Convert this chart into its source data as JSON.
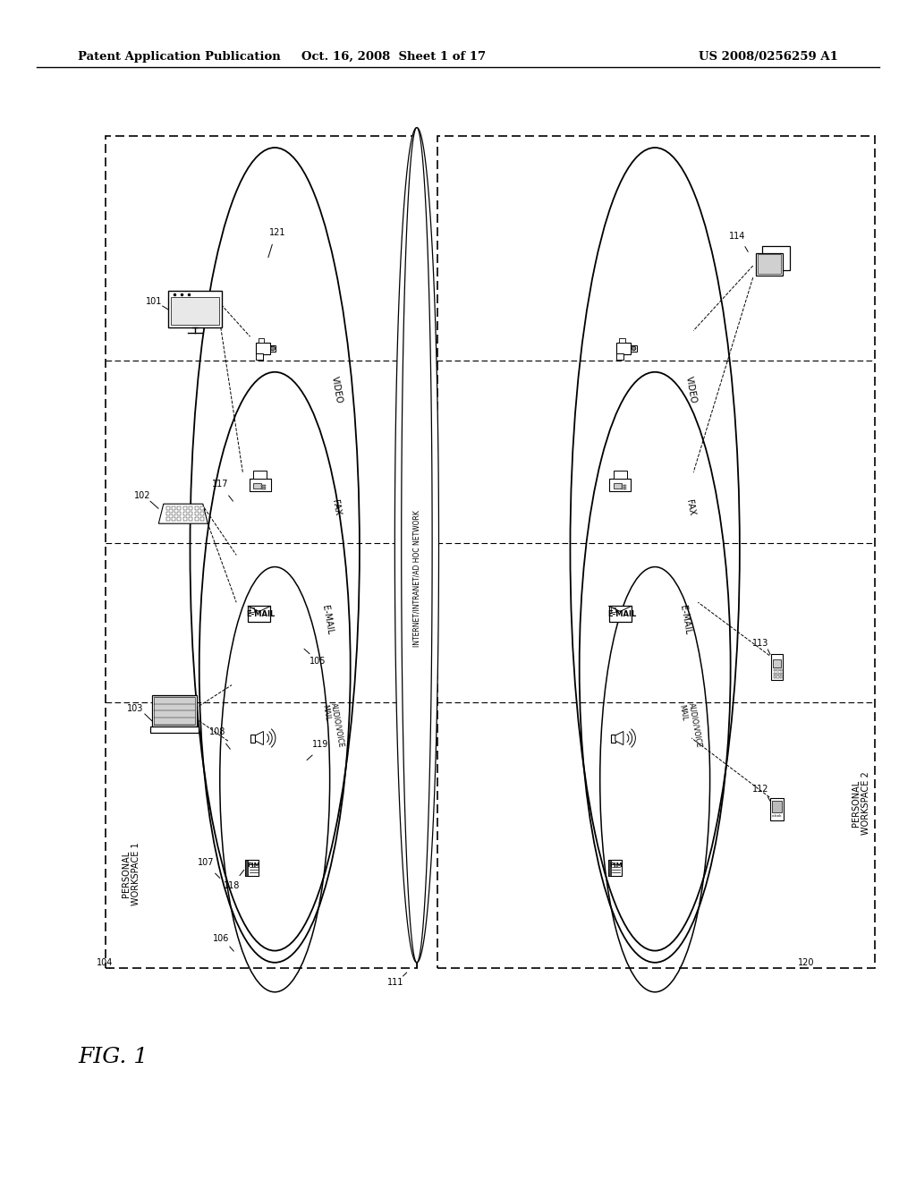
{
  "background_color": "#ffffff",
  "header_left": "Patent Application Publication",
  "header_mid": "Oct. 16, 2008  Sheet 1 of 17",
  "header_right": "US 2008/0256259 A1",
  "fig_label": "FIG. 1",
  "network_label": "INTERNET/INTRANET/AD HOC NETWORK",
  "ws1_label": "PERSONAL\nWORKSPACE 1",
  "ws2_label": "PERSONAL\nWORKSPACE 2"
}
